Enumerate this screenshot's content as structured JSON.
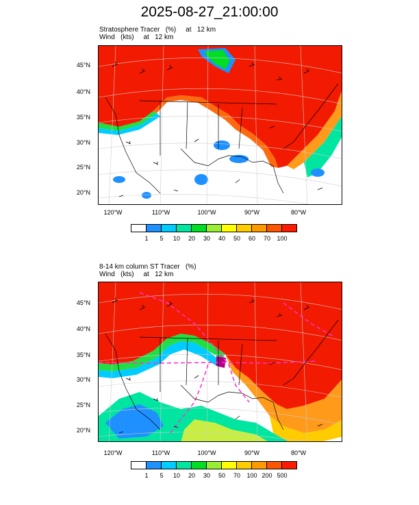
{
  "title": "2025-08-27_21:00:00",
  "panels": [
    {
      "line1": "Stratosphere Tracer   (%)     at   12 km",
      "line2": "Wind   (kts)     at   12 km",
      "lat_labels": [
        "45°N",
        "40°N",
        "35°N",
        "30°N",
        "25°N",
        "20°N"
      ],
      "lon_labels": [
        "120°W",
        "110°W",
        "100°W",
        "90°W",
        "80°W"
      ],
      "colorbar": {
        "colors": [
          "#ffffff",
          "#1e90ff",
          "#00ccff",
          "#00e5a0",
          "#00dd22",
          "#99ee33",
          "#ffff00",
          "#ffcc00",
          "#ff9900",
          "#ff5500",
          "#ff1a00"
        ],
        "labels": [
          "1",
          "5",
          "10",
          "20",
          "30",
          "40",
          "50",
          "60",
          "70",
          "100"
        ]
      }
    },
    {
      "line1": "8-14 km column ST Tracer   (%)",
      "line2": "Wind   (kts)     at   12 km",
      "lat_labels": [
        "45°N",
        "40°N",
        "35°N",
        "30°N",
        "25°N",
        "20°N"
      ],
      "lon_labels": [
        "120°W",
        "110°W",
        "100°W",
        "90°W",
        "80°W"
      ],
      "colorbar": {
        "colors": [
          "#ffffff",
          "#1e90ff",
          "#00ccff",
          "#00e5a0",
          "#00dd22",
          "#99ee33",
          "#ffff00",
          "#ffcc00",
          "#ff9900",
          "#ff5500",
          "#ff1a00"
        ],
        "labels": [
          "1",
          "5",
          "10",
          "20",
          "30",
          "50",
          "70",
          "100",
          "200",
          "500"
        ]
      }
    }
  ]
}
